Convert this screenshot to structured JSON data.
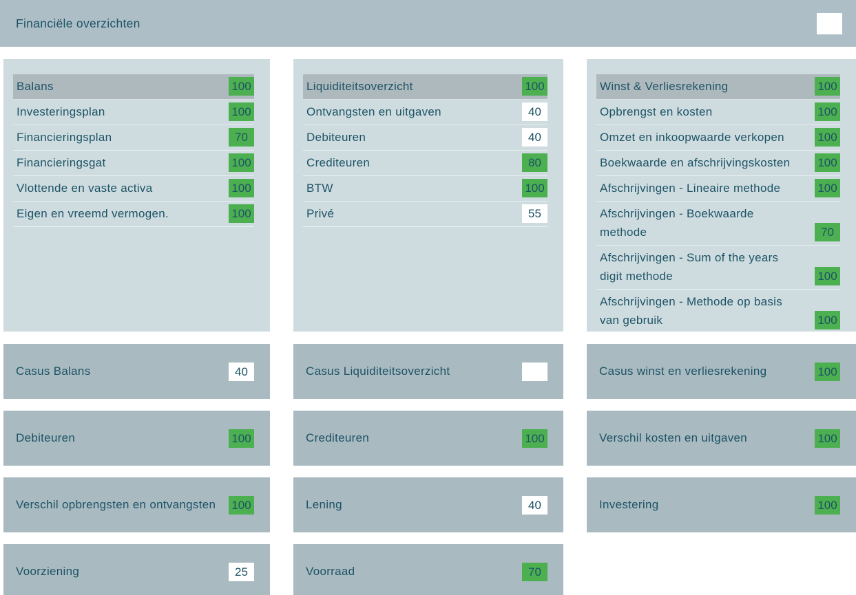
{
  "header": {
    "title": "Financiële overzichten"
  },
  "colors": {
    "header_bg": "#adbec6",
    "topic_card_bg": "#cedce0",
    "highlight_row_bg": "#aeb9be",
    "tile_bg": "#a9bac1",
    "score_green": "#4caf50",
    "score_white": "#ffffff",
    "text": "#1d5365"
  },
  "topic_cards": [
    {
      "name": "balans",
      "items": [
        {
          "label": "Balans",
          "score": "100",
          "badge": "green",
          "highlighted": true
        },
        {
          "label": "Investeringsplan",
          "score": "100",
          "badge": "green"
        },
        {
          "label": "Financieringsplan",
          "score": "70",
          "badge": "green"
        },
        {
          "label": "Financieringsgat",
          "score": "100",
          "badge": "green"
        },
        {
          "label": "Vlottende en vaste activa",
          "score": "100",
          "badge": "green"
        },
        {
          "label": "Eigen en vreemd vermogen.",
          "score": "100",
          "badge": "green"
        }
      ]
    },
    {
      "name": "liquiditeitsoverzicht",
      "items": [
        {
          "label": "Liquiditeitsoverzicht",
          "score": "100",
          "badge": "green",
          "highlighted": true
        },
        {
          "label": "Ontvangsten en uitgaven",
          "score": "40",
          "badge": "white"
        },
        {
          "label": "Debiteuren",
          "score": "40",
          "badge": "white"
        },
        {
          "label": "Crediteuren",
          "score": "80",
          "badge": "green"
        },
        {
          "label": "BTW",
          "score": "100",
          "badge": "green"
        },
        {
          "label": "Privé",
          "score": "55",
          "badge": "white"
        }
      ]
    },
    {
      "name": "winst-verliesrekening",
      "items": [
        {
          "label": "Winst & Verliesrekening",
          "score": "100",
          "badge": "green",
          "highlighted": true
        },
        {
          "label": "Opbrengst en kosten",
          "score": "100",
          "badge": "green"
        },
        {
          "label": "Omzet en inkoopwaarde verkopen",
          "score": "100",
          "badge": "green"
        },
        {
          "label": "Boekwaarde en afschrijvingskosten",
          "score": "100",
          "badge": "green"
        },
        {
          "label": "Afschrijvingen - Lineaire methode",
          "score": "100",
          "badge": "green"
        },
        {
          "label": "Afschrijvingen - Boekwaarde\nmethode",
          "score": "70",
          "badge": "green"
        },
        {
          "label": "Afschrijvingen - Sum of the years\ndigit methode",
          "score": "100",
          "badge": "green"
        },
        {
          "label": "Afschrijvingen - Methode op basis\nvan gebruik",
          "score": "100",
          "badge": "green"
        }
      ]
    }
  ],
  "tile_rows": [
    [
      {
        "label": "Casus Balans",
        "score": "40",
        "badge": "white"
      },
      {
        "label": "Casus Liquiditeitsoverzicht",
        "score": "",
        "badge": "white"
      },
      {
        "label": "Casus winst en verliesrekening",
        "score": "100",
        "badge": "green"
      }
    ],
    [
      {
        "label": "Debiteuren",
        "score": "100",
        "badge": "green"
      },
      {
        "label": "Crediteuren",
        "score": "100",
        "badge": "green"
      },
      {
        "label": "Verschil kosten en uitgaven",
        "score": "100",
        "badge": "green"
      }
    ],
    [
      {
        "label": "Verschil opbrengsten en ontvangsten",
        "score": "100",
        "badge": "green"
      },
      {
        "label": "Lening",
        "score": "40",
        "badge": "white"
      },
      {
        "label": "Investering",
        "score": "100",
        "badge": "green"
      }
    ],
    [
      {
        "label": "Voorziening",
        "score": "25",
        "badge": "white"
      },
      {
        "label": "Voorraad",
        "score": "70",
        "badge": "green"
      }
    ]
  ]
}
